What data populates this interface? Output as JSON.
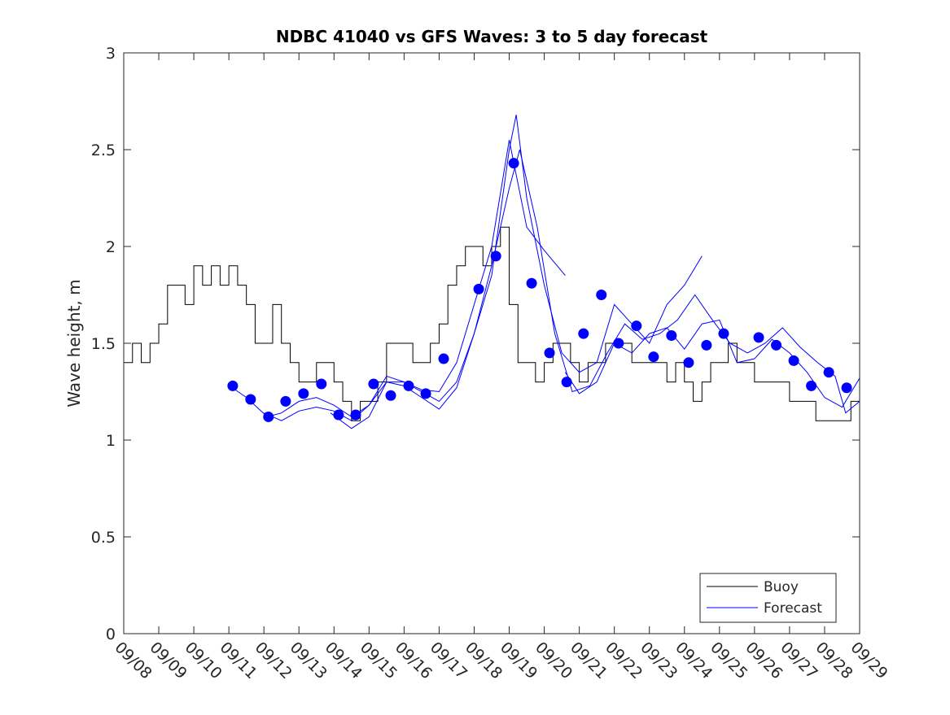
{
  "chart_data": {
    "type": "line",
    "title": "NDBC 41040 vs GFS Waves: 3 to 5 day forecast",
    "xlabel": "",
    "ylabel": "Wave height, m",
    "xlim": [
      0,
      21
    ],
    "ylim": [
      0,
      3
    ],
    "x_unit": "days since 09/08",
    "x_tick_labels": [
      "09/08",
      "09/09",
      "09/10",
      "09/11",
      "09/12",
      "09/13",
      "09/14",
      "09/15",
      "09/16",
      "09/17",
      "09/18",
      "09/19",
      "09/20",
      "09/21",
      "09/22",
      "09/23",
      "09/24",
      "09/25",
      "09/26",
      "09/27",
      "09/28",
      "09/29"
    ],
    "y_ticks": [
      0,
      0.5,
      1,
      1.5,
      2,
      2.5,
      3
    ],
    "y_tick_labels": [
      "0",
      "0.5",
      "1",
      "1.5",
      "2",
      "2.5",
      "3"
    ],
    "grid": false,
    "legend": {
      "placement": "bottom-right",
      "entries": [
        "Buoy",
        "Forecast"
      ]
    },
    "colors": {
      "buoy": "#000000",
      "forecast": "#0000ff"
    },
    "buoy": {
      "name": "Buoy",
      "step": 0.25,
      "values": [
        1.4,
        1.5,
        1.4,
        1.5,
        1.6,
        1.8,
        1.8,
        1.7,
        1.9,
        1.8,
        1.9,
        1.8,
        1.9,
        1.8,
        1.7,
        1.5,
        1.5,
        1.7,
        1.5,
        1.4,
        1.3,
        1.3,
        1.4,
        1.4,
        1.3,
        1.2,
        1.1,
        1.2,
        1.2,
        1.3,
        1.5,
        1.5,
        1.5,
        1.4,
        1.4,
        1.5,
        1.6,
        1.8,
        1.9,
        2.0,
        2.0,
        1.9,
        2.0,
        2.1,
        1.7,
        1.4,
        1.4,
        1.3,
        1.4,
        1.5,
        1.5,
        1.4,
        1.3,
        1.4,
        1.4,
        1.5,
        1.5,
        1.5,
        1.4,
        1.4,
        1.4,
        1.4,
        1.3,
        1.4,
        1.3,
        1.2,
        1.3,
        1.4,
        1.4,
        1.5,
        1.4,
        1.4,
        1.3,
        1.3,
        1.3,
        1.3,
        1.2,
        1.2,
        1.2,
        1.1,
        1.1,
        1.1,
        1.1,
        1.2,
        1.2
      ]
    },
    "forecast_lines": [
      {
        "name": "Forecast",
        "x": [
          3.1,
          3.5,
          4.1,
          4.5,
          5.0,
          5.5,
          6.0,
          6.5,
          7.0,
          7.5,
          8.0,
          8.5,
          9.0,
          9.5,
          10.0,
          10.5,
          11.0,
          11.5,
          12.0,
          12.6
        ],
        "y": [
          1.27,
          1.22,
          1.12,
          1.14,
          1.2,
          1.22,
          1.18,
          1.12,
          1.18,
          1.3,
          1.3,
          1.26,
          1.25,
          1.4,
          1.7,
          2.0,
          2.55,
          2.1,
          1.98,
          1.85
        ]
      },
      {
        "name": "Forecast",
        "x": [
          4.0,
          4.5,
          5.0,
          5.5,
          6.0,
          6.5,
          7.0,
          7.5,
          8.0,
          8.5,
          9.0,
          9.5,
          10.0,
          10.5,
          11.0,
          11.2,
          11.5,
          12.0,
          12.5,
          13.0,
          13.5,
          14.0,
          14.5,
          15.0,
          15.5,
          16.0,
          16.5
        ],
        "y": [
          1.14,
          1.1,
          1.15,
          1.17,
          1.15,
          1.1,
          1.18,
          1.33,
          1.3,
          1.25,
          1.2,
          1.3,
          1.55,
          1.85,
          2.5,
          2.68,
          2.25,
          1.8,
          1.45,
          1.35,
          1.4,
          1.7,
          1.6,
          1.5,
          1.7,
          1.8,
          1.95
        ]
      },
      {
        "name": "Forecast",
        "x": [
          5.9,
          6.5,
          7.0,
          7.5,
          8.0,
          8.5,
          9.0,
          9.5,
          10.0,
          10.5,
          11.0,
          11.3,
          11.8,
          12.3,
          12.8,
          13.3,
          13.8,
          14.3,
          14.8,
          15.3,
          15.8,
          16.3,
          16.8,
          17.3,
          17.8,
          18.3,
          18.8,
          19.3,
          19.8,
          20.3,
          20.6,
          21.0
        ],
        "y": [
          1.14,
          1.06,
          1.12,
          1.3,
          1.28,
          1.22,
          1.16,
          1.27,
          1.55,
          1.9,
          2.3,
          2.5,
          2.1,
          1.55,
          1.25,
          1.28,
          1.45,
          1.6,
          1.52,
          1.55,
          1.62,
          1.75,
          1.62,
          1.5,
          1.45,
          1.5,
          1.58,
          1.48,
          1.4,
          1.33,
          1.14,
          1.2
        ]
      },
      {
        "name": "Forecast",
        "x": [
          12.6,
          13.0,
          13.5,
          14.0,
          14.5,
          15.0,
          15.5,
          16.0,
          16.5,
          17.0,
          17.5,
          18.0,
          18.5,
          19.0,
          19.5,
          20.0,
          20.5,
          21.0
        ],
        "y": [
          1.35,
          1.24,
          1.3,
          1.5,
          1.45,
          1.55,
          1.58,
          1.47,
          1.6,
          1.62,
          1.4,
          1.42,
          1.52,
          1.45,
          1.35,
          1.22,
          1.17,
          1.32
        ]
      }
    ],
    "forecast_points": {
      "x": [
        3.11,
        3.62,
        4.13,
        4.62,
        5.13,
        5.64,
        6.13,
        6.62,
        7.13,
        7.62,
        8.13,
        8.62,
        9.13,
        10.13,
        10.62,
        11.13,
        11.64,
        12.15,
        12.64,
        13.12,
        13.63,
        14.12,
        14.63,
        15.12,
        15.63,
        16.12,
        16.63,
        17.12,
        18.12,
        18.62,
        19.12,
        19.62,
        20.12,
        20.63
      ],
      "y": [
        1.28,
        1.21,
        1.12,
        1.2,
        1.24,
        1.29,
        1.13,
        1.13,
        1.29,
        1.23,
        1.28,
        1.24,
        1.42,
        1.78,
        1.95,
        2.43,
        1.81,
        1.45,
        1.3,
        1.55,
        1.75,
        1.5,
        1.59,
        1.43,
        1.54,
        1.4,
        1.49,
        1.55,
        1.53,
        1.49,
        1.41,
        1.28,
        1.35,
        1.27
      ]
    }
  }
}
